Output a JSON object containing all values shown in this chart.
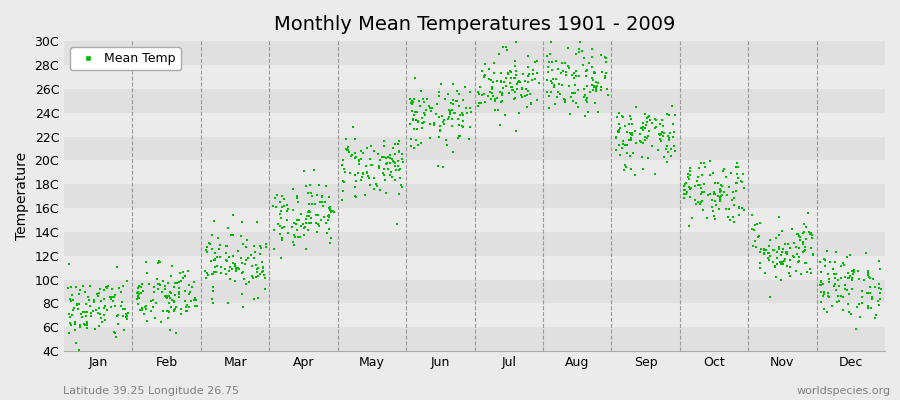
{
  "title": "Monthly Mean Temperatures 1901 - 2009",
  "ylabel": "Temperature",
  "ytick_labels": [
    "4C",
    "6C",
    "8C",
    "10C",
    "12C",
    "14C",
    "16C",
    "18C",
    "20C",
    "22C",
    "24C",
    "26C",
    "28C",
    "30C"
  ],
  "ytick_values": [
    4,
    6,
    8,
    10,
    12,
    14,
    16,
    18,
    20,
    22,
    24,
    26,
    28,
    30
  ],
  "ymin": 4,
  "ymax": 30,
  "dot_color": "#00BB00",
  "dot_size": 3,
  "bg_dark": "#E0E0E0",
  "bg_light": "#EBEBEB",
  "dashed_line_color": "#999999",
  "month_names": [
    "Jan",
    "Feb",
    "Mar",
    "Apr",
    "May",
    "Jun",
    "Jul",
    "Aug",
    "Sep",
    "Oct",
    "Nov",
    "Dec"
  ],
  "month_centers": [
    0.5,
    1.5,
    2.5,
    3.5,
    4.5,
    5.5,
    6.5,
    7.5,
    8.5,
    9.5,
    10.5,
    11.5
  ],
  "month_means": [
    7.5,
    8.5,
    11.5,
    15.5,
    19.5,
    23.5,
    26.5,
    26.5,
    22.0,
    17.5,
    12.5,
    9.5
  ],
  "n_years": 109,
  "seed": 42,
  "footnote_left": "Latitude 39.25 Longitude 26.75",
  "footnote_right": "worldspecies.org",
  "legend_label": "Mean Temp",
  "title_fontsize": 14,
  "axis_fontsize": 10,
  "tick_fontsize": 9,
  "footnote_fontsize": 8
}
